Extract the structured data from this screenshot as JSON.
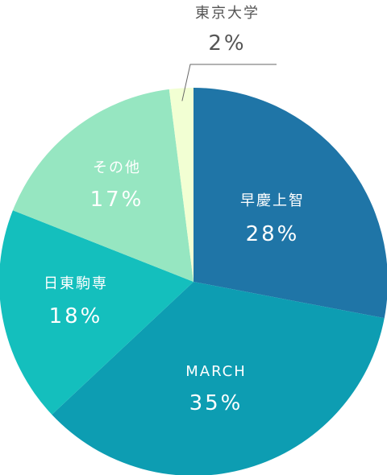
{
  "chart_data": {
    "type": "pie",
    "start": "12 o'clock",
    "direction": "clockwise",
    "slices": [
      {
        "label": "早慶上智",
        "value": 28,
        "value_label": "28%",
        "color": "#1f75a7"
      },
      {
        "label": "MARCH",
        "value": 35,
        "value_label": "35%",
        "color": "#0d9db2"
      },
      {
        "label": "日東駒専",
        "value": 18,
        "value_label": "18%",
        "color": "#14bfbd"
      },
      {
        "label": "その他",
        "value": 17,
        "value_label": "17%",
        "color": "#96e6c1"
      },
      {
        "label": "東京大学",
        "value": 2,
        "value_label": "2%",
        "color": "#f2ffd3",
        "label_position": "outside"
      }
    ]
  }
}
